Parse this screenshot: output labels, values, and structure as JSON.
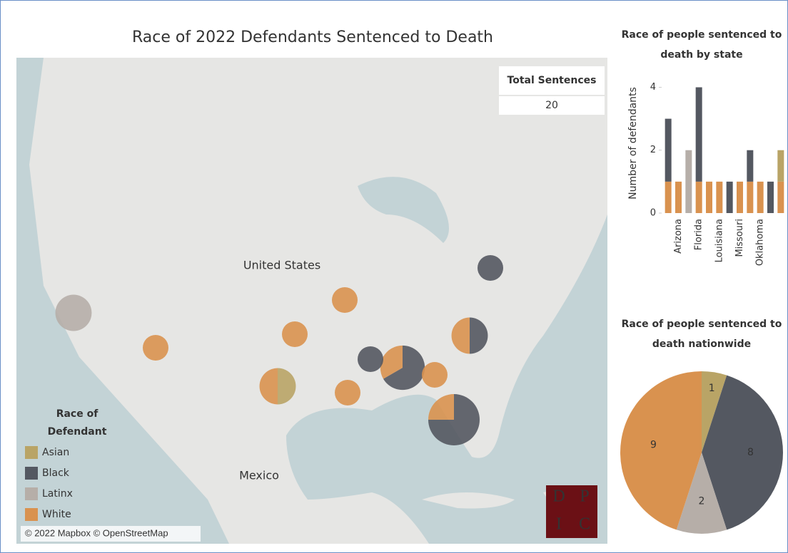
{
  "title": "Race of 2022 Defendants Sentenced to Death",
  "map": {
    "labels": [
      "United States",
      "Mexico"
    ],
    "attribution": "© 2022 Mapbox © OpenStreetMap",
    "legend_title": "Race of Defendant"
  },
  "total_sentences": {
    "label": "Total Sentences",
    "value": 20
  },
  "logo": [
    "D",
    "P",
    "I",
    "C"
  ],
  "chart_data": [
    {
      "type": "bar",
      "stacked": true,
      "title": "Race of people sentenced to death by state",
      "y_label": "Number of defendants",
      "categories": [
        null,
        "Arizona",
        null,
        "Florida",
        null,
        "Louisiana",
        null,
        "Missouri",
        null,
        "Oklahoma",
        null,
        null
      ],
      "series": [
        {
          "name": "Asian",
          "color": "#b9a466",
          "values": [
            0,
            0,
            0,
            0,
            0,
            0,
            0,
            0,
            0,
            0,
            0,
            1
          ]
        },
        {
          "name": "Black",
          "color": "#545861",
          "values": [
            2,
            0,
            0,
            3,
            0,
            0,
            1,
            0,
            1,
            0,
            1,
            0
          ]
        },
        {
          "name": "Latinx",
          "color": "#b6aea8",
          "values": [
            0,
            0,
            2,
            0,
            0,
            0,
            0,
            0,
            0,
            0,
            0,
            0
          ]
        },
        {
          "name": "White",
          "color": "#d9924f",
          "values": [
            1,
            1,
            0,
            1,
            1,
            1,
            0,
            1,
            1,
            1,
            0,
            1
          ]
        }
      ],
      "ylim": [
        0,
        4.6
      ],
      "yticks": [
        0,
        2,
        4
      ]
    },
    {
      "type": "pie",
      "title": "Race of people sentenced to death nationwide",
      "categories": [
        "Asian",
        "Black",
        "Latinx",
        "White"
      ],
      "values": [
        1,
        8,
        2,
        9
      ],
      "colors": [
        "#b9a466",
        "#545861",
        "#b6aea8",
        "#d9924f"
      ]
    }
  ]
}
